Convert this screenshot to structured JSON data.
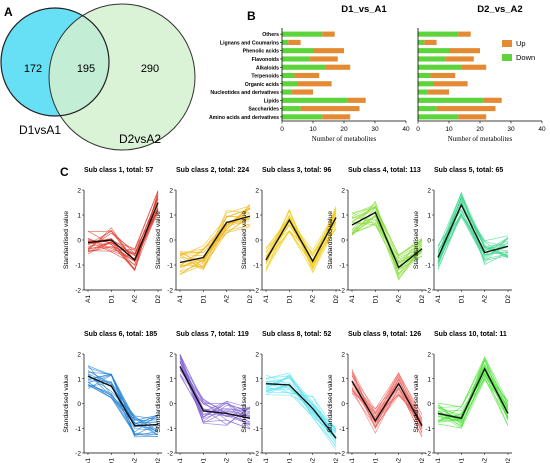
{
  "panels": {
    "A": "A",
    "B": "B",
    "C": "C"
  },
  "chart_data": [
    {
      "type": "venn",
      "sets": [
        {
          "name": "D1vsA1",
          "only": 172,
          "color": "#67dff5"
        },
        {
          "name": "D2vsA2",
          "only": 290,
          "color": "#d3f0cf"
        }
      ],
      "intersection": 195
    },
    {
      "type": "bar",
      "stacked": true,
      "orientation": "horizontal",
      "title": "D1_vs_A1",
      "xlabel": "Number of metabolites",
      "xlim": [
        0,
        40
      ],
      "xticks": [
        0,
        10,
        20,
        30,
        40
      ],
      "categories": [
        "Others",
        "Lignans and Coumarins",
        "Phenolic acids",
        "Flavonoids",
        "Alkaloids",
        "Terpenoids",
        "Organic acids",
        "Nucleotides and derivatives",
        "Lipids",
        "Saccharides",
        "Amino acids and derivatives"
      ],
      "series": [
        {
          "name": "Down",
          "color": "#5ed43c",
          "values": [
            13,
            2,
            10,
            9,
            14,
            4,
            5,
            3,
            21,
            6,
            13
          ]
        },
        {
          "name": "Up",
          "color": "#e48a33",
          "values": [
            4,
            4,
            10,
            9,
            8,
            8,
            11,
            7,
            6,
            19,
            9
          ]
        }
      ]
    },
    {
      "type": "bar",
      "stacked": true,
      "orientation": "horizontal",
      "title": "D2_vs_A2",
      "xlabel": "Number of metabolites",
      "xlim": [
        0,
        40
      ],
      "xticks": [
        0,
        10,
        20,
        30,
        40
      ],
      "legend": "right",
      "categories": [
        "Others",
        "Lignans and Coumarins",
        "Phenolic acids",
        "Flavonoids",
        "Alkaloids",
        "Terpenoids",
        "Organic acids",
        "Nucleotides and derivatives",
        "Lipids",
        "Saccharides",
        "Amino acids and derivatives"
      ],
      "series": [
        {
          "name": "Up",
          "color": "#e48a33",
          "values": [
            4,
            4,
            10,
            9,
            8,
            8,
            11,
            7,
            6,
            19,
            9
          ]
        },
        {
          "name": "Down",
          "color": "#5ed43c",
          "values": [
            13,
            2,
            10,
            9,
            14,
            4,
            5,
            3,
            21,
            6,
            13
          ]
        }
      ]
    },
    {
      "type": "line",
      "ylabel": "Standardised value",
      "x": [
        "A1",
        "D1",
        "A2",
        "D2"
      ],
      "ylim": [
        -2,
        2
      ],
      "yticks": [
        -2,
        -1,
        0,
        1,
        2
      ],
      "subplots": [
        {
          "title": "Sub class 1, total: 57",
          "color": "#e03a2c",
          "mean": [
            -0.1,
            0.0,
            -0.8,
            1.5
          ]
        },
        {
          "title": "Sub class 2, total: 224",
          "color": "#f0b513",
          "mean": [
            -0.9,
            -0.7,
            0.7,
            0.95
          ]
        },
        {
          "title": "Sub class 3, total: 96",
          "color": "#f2ce1c",
          "mean": [
            -0.8,
            0.8,
            -0.85,
            0.9
          ]
        },
        {
          "title": "Sub class 4, total: 113",
          "color": "#86dc3a",
          "mean": [
            0.6,
            1.1,
            -1.1,
            -0.35
          ]
        },
        {
          "title": "Sub class 5, total: 65",
          "color": "#3ed68e",
          "mean": [
            -0.7,
            1.4,
            -0.5,
            -0.25
          ]
        },
        {
          "title": "Sub class 6, total: 185",
          "color": "#1e7fd4",
          "mean": [
            1.1,
            0.7,
            -0.9,
            -0.85
          ]
        },
        {
          "title": "Sub class 7, total: 119",
          "color": "#8466d6",
          "mean": [
            1.5,
            -0.3,
            -0.4,
            -0.6
          ]
        },
        {
          "title": "Sub class 8, total: 52",
          "color": "#5ee3f2",
          "mean": [
            0.8,
            0.75,
            -0.2,
            -1.4
          ]
        },
        {
          "title": "Sub class 9, total: 126",
          "color": "#ee6a64",
          "mean": [
            0.9,
            -0.7,
            0.8,
            -0.9
          ]
        },
        {
          "title": "Sub class 10, total: 11",
          "color": "#4ee33a",
          "mean": [
            -0.4,
            -0.6,
            1.4,
            -0.4
          ]
        }
      ]
    }
  ]
}
